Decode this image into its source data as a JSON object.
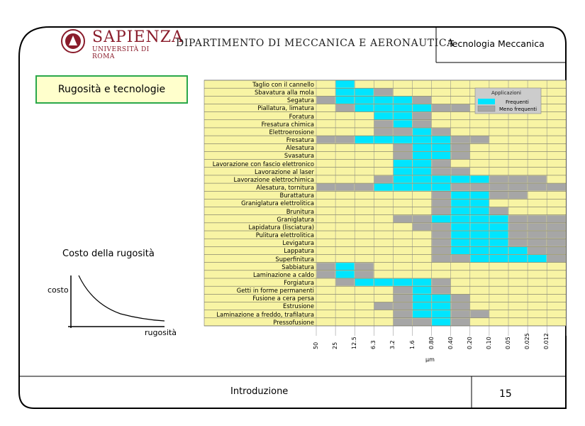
{
  "header": {
    "university_name": "SAPIENZA",
    "university_sub": "UNIVERSITÀ DI ROMA",
    "department": "DIPARTIMENTO DI MECCANICA E AERONAUTICA",
    "course": "Tecnologia Meccanica"
  },
  "title": "Rugosità e tecnologie",
  "cost_chart": {
    "title": "Costo della rugosità",
    "ylabel": "costo",
    "xlabel": "rugosità"
  },
  "colors": {
    "frequent": "#00e5ff",
    "less_frequent": "#a6a6a6",
    "grid_bg": "#f8f4a4",
    "title_border": "#2aa84a"
  },
  "chart_data": {
    "type": "table",
    "columns": [
      "50",
      "25",
      "12.5",
      "6.3",
      "3.2",
      "1.6",
      "0.80",
      "0.40",
      "0.20",
      "0.10",
      "0.05",
      "0.025",
      "0.012"
    ],
    "unit": "µm",
    "legend": {
      "title": "Applicazioni",
      "frequent": "Frequenti",
      "less_frequent": "Meno frequenti"
    },
    "rows": [
      {
        "label": "Taglio con il cannello",
        "cells": "0100000000000"
      },
      {
        "label": "Sbavatura alla mola",
        "cells": "0112000000000"
      },
      {
        "label": "Segatura",
        "cells": "2111120000000"
      },
      {
        "label": "Piallatura, limatura",
        "cells": "0211112200000"
      },
      {
        "label": "Foratura",
        "cells": "0001120000000"
      },
      {
        "label": "Fresatura chimica",
        "cells": "0002120000000"
      },
      {
        "label": "Elettroerosione",
        "cells": "0002212000000"
      },
      {
        "label": "Fresatura",
        "cells": "2211111220000"
      },
      {
        "label": "Alesatura",
        "cells": "0000211200000"
      },
      {
        "label": "Svasatura",
        "cells": "0000211200000"
      },
      {
        "label": "Lavorazione con fascio elettronico",
        "cells": "0000112000000"
      },
      {
        "label": "Lavorazione al laser",
        "cells": "0000112200000"
      },
      {
        "label": "Lavorazione elettrochimica",
        "cells": "0002111112220"
      },
      {
        "label": "Alesatura, tornitura",
        "cells": "2221111222222"
      },
      {
        "label": "Burattatura",
        "cells": "0000002112200"
      },
      {
        "label": "Graniglatura elettrolitica",
        "cells": "0000002110000"
      },
      {
        "label": "Brunitura",
        "cells": "0000002112000"
      },
      {
        "label": "Graniglatura",
        "cells": "0000221111222"
      },
      {
        "label": "Lapidatura (lisciatura)",
        "cells": "0000022111222"
      },
      {
        "label": "Pulitura elettrolitica",
        "cells": "0000002111222"
      },
      {
        "label": "Levigatura",
        "cells": "0000002111222"
      },
      {
        "label": "Lappatura",
        "cells": "0000002111122"
      },
      {
        "label": "Superfinitura",
        "cells": "0000002211112"
      },
      {
        "label": "Sabbiatura",
        "cells": "2120000000000"
      },
      {
        "label": "Laminazione a caldo",
        "cells": "2120000000000"
      },
      {
        "label": "Forgiatura",
        "cells": "0211112000000"
      },
      {
        "label": "Getti in forme permanenti",
        "cells": "0000212000000"
      },
      {
        "label": "Fusione a cera persa",
        "cells": "0000211200000"
      },
      {
        "label": "Estrusione",
        "cells": "0002211200000"
      },
      {
        "label": "Laminazione a freddo, trafilatura",
        "cells": "0000211220000"
      },
      {
        "label": "Pressofusione",
        "cells": "0000221200000"
      }
    ]
  },
  "footer": {
    "section": "Introduzione",
    "page": "15"
  }
}
